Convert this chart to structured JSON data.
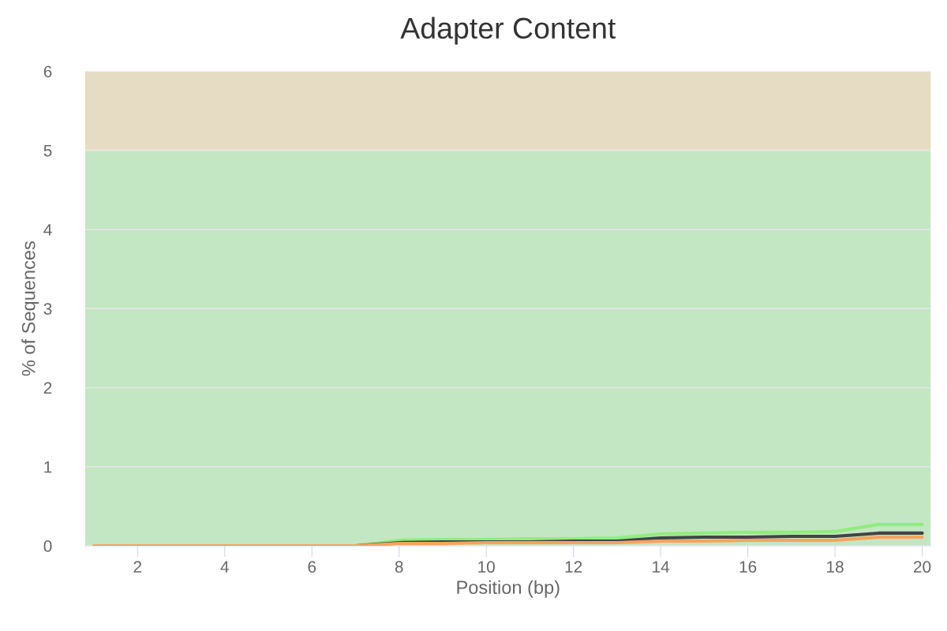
{
  "chart_data": {
    "type": "line",
    "title": "Adapter Content",
    "xlabel": "Position (bp)",
    "ylabel": "% of Sequences",
    "x": [
      1,
      2,
      3,
      4,
      5,
      6,
      7,
      8,
      9,
      10,
      11,
      12,
      13,
      14,
      15,
      16,
      17,
      18,
      19,
      20
    ],
    "series": [
      {
        "color": "#90ed7d",
        "values": [
          null,
          null,
          null,
          null,
          null,
          0,
          0,
          0.07,
          0.08,
          0.08,
          0.09,
          0.09,
          0.1,
          0.15,
          0.16,
          0.17,
          0.17,
          0.18,
          0.27,
          0.27
        ]
      },
      {
        "color": "#434348",
        "values": [
          null,
          null,
          null,
          null,
          null,
          null,
          0,
          0.04,
          0.05,
          0.05,
          0.05,
          0.06,
          0.06,
          0.1,
          0.11,
          0.11,
          0.12,
          0.12,
          0.16,
          0.16
        ]
      },
      {
        "color": "#f7a35c",
        "values": [
          0,
          0,
          0,
          0,
          0,
          0,
          0,
          0.03,
          0.03,
          0.04,
          0.04,
          0.04,
          0.04,
          0.06,
          0.06,
          0.07,
          0.07,
          0.07,
          0.11,
          0.11
        ]
      }
    ],
    "xlim": [
      0.8,
      20.2
    ],
    "ylim": [
      0,
      6
    ],
    "xticks": [
      2,
      4,
      6,
      8,
      10,
      12,
      14,
      16,
      18,
      20
    ],
    "yticks": [
      0,
      1,
      2,
      3,
      4,
      5,
      6
    ],
    "bands": [
      {
        "axis": "y",
        "from": 0,
        "to": 5,
        "color": "#c3e6c3"
      },
      {
        "axis": "y",
        "from": 5,
        "to": 6,
        "color": "#e6dcc3"
      }
    ],
    "grid": "y",
    "marker": "none",
    "line_style": "solid"
  }
}
